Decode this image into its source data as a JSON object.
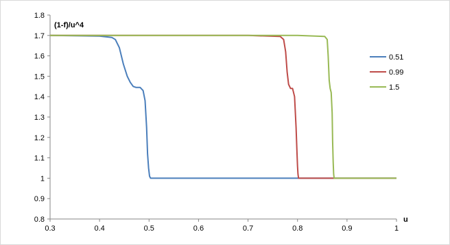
{
  "chart_data": {
    "type": "line",
    "xlabel": "u",
    "ylabel": "(1-f)/u^4",
    "xlim": [
      0.3,
      1.0
    ],
    "ylim": [
      0.8,
      1.8
    ],
    "x_ticks": [
      "0.3",
      "0.4",
      "0.5",
      "0.6",
      "0.7",
      "0.8",
      "0.9",
      "1"
    ],
    "y_ticks": [
      "0.8",
      "0.9",
      "1",
      "1.1",
      "1.2",
      "1.3",
      "1.4",
      "1.5",
      "1.6",
      "1.7",
      "1.8"
    ],
    "grid": false,
    "legend_position": "right",
    "series": [
      {
        "name": "0.51",
        "color": "#4a7ebb",
        "x": [
          0.3,
          0.4,
          0.425,
          0.432,
          0.44,
          0.448,
          0.456,
          0.462,
          0.468,
          0.474,
          0.482,
          0.488,
          0.492,
          0.495,
          0.497,
          0.499,
          0.501,
          0.503,
          0.505,
          0.6,
          0.8,
          1.0
        ],
        "y": [
          1.7,
          1.697,
          1.69,
          1.68,
          1.64,
          1.56,
          1.5,
          1.47,
          1.45,
          1.445,
          1.445,
          1.43,
          1.38,
          1.25,
          1.12,
          1.05,
          1.01,
          1.0,
          1.0,
          1.0,
          1.0,
          1.0
        ]
      },
      {
        "name": "0.99",
        "color": "#be4b48",
        "x": [
          0.3,
          0.7,
          0.765,
          0.772,
          0.776,
          0.779,
          0.782,
          0.786,
          0.79,
          0.794,
          0.797,
          0.799,
          0.8,
          0.801,
          0.802,
          0.803,
          0.9,
          1.0
        ],
        "y": [
          1.7,
          1.7,
          1.695,
          1.68,
          1.62,
          1.52,
          1.46,
          1.44,
          1.44,
          1.4,
          1.25,
          1.12,
          1.06,
          1.02,
          1.0,
          1.0,
          1.0,
          1.0
        ],
        "note_omitted": true
      },
      {
        "name": "1.5",
        "color": "#98b954",
        "x": [
          0.3,
          0.8,
          0.855,
          0.86,
          0.862,
          0.864,
          0.866,
          0.868,
          0.87,
          0.871,
          0.872,
          0.873,
          0.874,
          0.9,
          1.0
        ],
        "y": [
          1.7,
          1.7,
          1.695,
          1.68,
          1.6,
          1.48,
          1.44,
          1.42,
          1.32,
          1.18,
          1.08,
          1.02,
          1.0,
          1.0,
          1.0
        ]
      }
    ]
  }
}
